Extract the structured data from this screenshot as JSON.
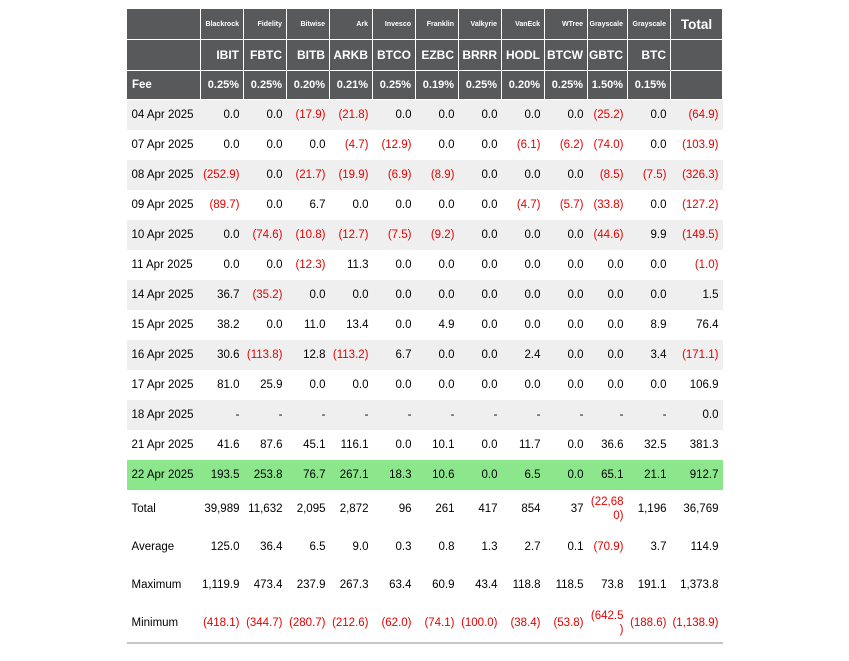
{
  "colors": {
    "header_bg": "#58595B",
    "header_border": "#FFFFFF",
    "stripe": "#EFEFEF",
    "highlight_green": "#8CE78C",
    "negative_red": "#E60000",
    "table_bottom_border": "#C8C8C8",
    "text": "#000000"
  },
  "table": {
    "header": {
      "issuers": [
        "Blackrock",
        "Fidelity",
        "Bitwise",
        "Ark",
        "Invesco",
        "Franklin",
        "Valkyrie",
        "VanEck",
        "WTree",
        "Grayscale",
        "Grayscale"
      ],
      "tickers": [
        "IBIT",
        "FBTC",
        "BITB",
        "ARKB",
        "BTCO",
        "EZBC",
        "BRRR",
        "HODL",
        "BTCW",
        "GBTC",
        "BTC"
      ],
      "fee_label": "Fee",
      "fees": [
        "0.25%",
        "0.25%",
        "0.20%",
        "0.21%",
        "0.25%",
        "0.19%",
        "0.25%",
        "0.20%",
        "0.25%",
        "1.50%",
        "0.15%"
      ],
      "total_label": "Total"
    },
    "rows": [
      {
        "date": "04 Apr 2025",
        "highlight": false,
        "values": [
          "0.0",
          "0.0",
          "(17.9)",
          "(21.8)",
          "0.0",
          "0.0",
          "0.0",
          "0.0",
          "0.0",
          "(25.2)",
          "0.0"
        ],
        "total": "(64.9)"
      },
      {
        "date": "07 Apr 2025",
        "highlight": false,
        "values": [
          "0.0",
          "0.0",
          "0.0",
          "(4.7)",
          "(12.9)",
          "0.0",
          "0.0",
          "(6.1)",
          "(6.2)",
          "(74.0)",
          "0.0"
        ],
        "total": "(103.9)"
      },
      {
        "date": "08 Apr 2025",
        "highlight": false,
        "values": [
          "(252.9)",
          "0.0",
          "(21.7)",
          "(19.9)",
          "(6.9)",
          "(8.9)",
          "0.0",
          "0.0",
          "0.0",
          "(8.5)",
          "(7.5)"
        ],
        "total": "(326.3)"
      },
      {
        "date": "09 Apr 2025",
        "highlight": false,
        "values": [
          "(89.7)",
          "0.0",
          "6.7",
          "0.0",
          "0.0",
          "0.0",
          "0.0",
          "(4.7)",
          "(5.7)",
          "(33.8)",
          "0.0"
        ],
        "total": "(127.2)"
      },
      {
        "date": "10 Apr 2025",
        "highlight": false,
        "values": [
          "0.0",
          "(74.6)",
          "(10.8)",
          "(12.7)",
          "(7.5)",
          "(9.2)",
          "0.0",
          "0.0",
          "0.0",
          "(44.6)",
          "9.9"
        ],
        "total": "(149.5)"
      },
      {
        "date": "11 Apr 2025",
        "highlight": false,
        "values": [
          "0.0",
          "0.0",
          "(12.3)",
          "11.3",
          "0.0",
          "0.0",
          "0.0",
          "0.0",
          "0.0",
          "0.0",
          "0.0"
        ],
        "total": "(1.0)"
      },
      {
        "date": "14 Apr 2025",
        "highlight": false,
        "values": [
          "36.7",
          "(35.2)",
          "0.0",
          "0.0",
          "0.0",
          "0.0",
          "0.0",
          "0.0",
          "0.0",
          "0.0",
          "0.0"
        ],
        "total": "1.5"
      },
      {
        "date": "15 Apr 2025",
        "highlight": false,
        "values": [
          "38.2",
          "0.0",
          "11.0",
          "13.4",
          "0.0",
          "4.9",
          "0.0",
          "0.0",
          "0.0",
          "0.0",
          "8.9"
        ],
        "total": "76.4"
      },
      {
        "date": "16 Apr 2025",
        "highlight": false,
        "values": [
          "30.6",
          "(113.8)",
          "12.8",
          "(113.2)",
          "6.7",
          "0.0",
          "0.0",
          "2.4",
          "0.0",
          "0.0",
          "3.4"
        ],
        "total": "(171.1)"
      },
      {
        "date": "17 Apr 2025",
        "highlight": false,
        "values": [
          "81.0",
          "25.9",
          "0.0",
          "0.0",
          "0.0",
          "0.0",
          "0.0",
          "0.0",
          "0.0",
          "0.0",
          "0.0"
        ],
        "total": "106.9"
      },
      {
        "date": "18 Apr 2025",
        "highlight": false,
        "values": [
          "-",
          "-",
          "-",
          "-",
          "-",
          "-",
          "-",
          "-",
          "-",
          "-",
          "-"
        ],
        "total": "0.0"
      },
      {
        "date": "21 Apr 2025",
        "highlight": false,
        "values": [
          "41.6",
          "87.6",
          "45.1",
          "116.1",
          "0.0",
          "10.1",
          "0.0",
          "11.7",
          "0.0",
          "36.6",
          "32.5"
        ],
        "total": "381.3"
      },
      {
        "date": "22 Apr 2025",
        "highlight": true,
        "values": [
          "193.5",
          "253.8",
          "76.7",
          "267.1",
          "18.3",
          "10.6",
          "0.0",
          "6.5",
          "0.0",
          "65.1",
          "21.1"
        ],
        "total": "912.7"
      }
    ],
    "summary": [
      {
        "label": "Total",
        "values": [
          "39,989",
          "11,632",
          "2,095",
          "2,872",
          "96",
          "261",
          "417",
          "854",
          "37",
          "(22,680)",
          "1,196"
        ],
        "total": "36,769"
      },
      {
        "label": "Average",
        "values": [
          "125.0",
          "36.4",
          "6.5",
          "9.0",
          "0.3",
          "0.8",
          "1.3",
          "2.7",
          "0.1",
          "(70.9)",
          "3.7"
        ],
        "total": "114.9"
      },
      {
        "label": "Maximum",
        "values": [
          "1,119.9",
          "473.4",
          "237.9",
          "267.3",
          "63.4",
          "60.9",
          "43.4",
          "118.8",
          "118.5",
          "73.8",
          "191.1"
        ],
        "total": "1,373.8"
      },
      {
        "label": "Minimum",
        "values": [
          "(418.1)",
          "(344.7)",
          "(280.7)",
          "(212.6)",
          "(62.0)",
          "(74.1)",
          "(100.0)",
          "(38.4)",
          "(53.8)",
          "(642.5)",
          "(188.6)"
        ],
        "total": "(1,138.9)"
      }
    ]
  }
}
